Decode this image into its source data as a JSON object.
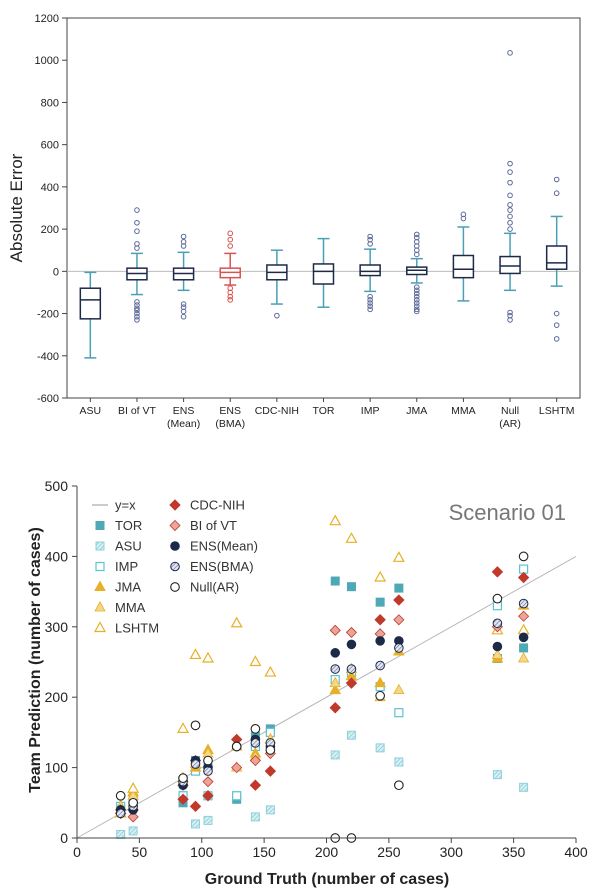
{
  "chart_data": [
    {
      "type": "box",
      "title": "",
      "xlabel": "",
      "ylabel": "Absolute Error",
      "ylim": [
        -600,
        1200
      ],
      "yticks": [
        -600,
        -400,
        -200,
        0,
        200,
        400,
        600,
        800,
        1000,
        1200
      ],
      "reference_line": 0,
      "grid": false,
      "categories": [
        {
          "label": [
            "ASU"
          ],
          "color": "#4a9fb5",
          "q1": -225,
          "median": -135,
          "q3": -80,
          "whisker_low": -410,
          "whisker_high": -5,
          "outliers": []
        },
        {
          "label": [
            "BI of VT"
          ],
          "color": "#4a9fb5",
          "q1": -40,
          "median": -10,
          "q3": 15,
          "whisker_low": -110,
          "whisker_high": 85,
          "outliers": [
            110,
            130,
            190,
            230,
            290,
            -145,
            -160,
            -175,
            -185,
            -200,
            -215,
            -230
          ]
        },
        {
          "label": [
            "ENS",
            "(Mean)"
          ],
          "color": "#4a9fb5",
          "q1": -40,
          "median": -10,
          "q3": 15,
          "whisker_low": -90,
          "whisker_high": 90,
          "outliers": [
            120,
            140,
            165,
            -155,
            -170,
            -190,
            -215
          ]
        },
        {
          "label": [
            "ENS",
            "(BMA)"
          ],
          "color": "#d9534f",
          "q1": -30,
          "median": -5,
          "q3": 15,
          "whisker_low": -65,
          "whisker_high": 85,
          "outliers": [
            120,
            150,
            180,
            -80,
            -100,
            -120,
            -135
          ]
        },
        {
          "label": [
            "CDC-NIH"
          ],
          "color": "#4a9fb5",
          "q1": -40,
          "median": -5,
          "q3": 30,
          "whisker_low": -155,
          "whisker_high": 100,
          "outliers": [
            -210
          ]
        },
        {
          "label": [
            "TOR"
          ],
          "color": "#4a9fb5",
          "q1": -60,
          "median": 0,
          "q3": 35,
          "whisker_low": -170,
          "whisker_high": 155,
          "outliers": []
        },
        {
          "label": [
            "IMP"
          ],
          "color": "#4a9fb5",
          "q1": -20,
          "median": 0,
          "q3": 30,
          "whisker_low": -95,
          "whisker_high": 105,
          "outliers": [
            130,
            150,
            165,
            -120,
            -135,
            -150,
            -165,
            -180
          ]
        },
        {
          "label": [
            "JMA"
          ],
          "color": "#4a9fb5",
          "q1": -15,
          "median": 5,
          "q3": 20,
          "whisker_low": -55,
          "whisker_high": 60,
          "outliers": [
            80,
            100,
            120,
            140,
            160,
            175,
            -75,
            -90,
            -105,
            -120,
            -135,
            -150,
            -165,
            -180,
            -190
          ]
        },
        {
          "label": [
            "MMA"
          ],
          "color": "#4a9fb5",
          "q1": -30,
          "median": 10,
          "q3": 75,
          "whisker_low": -140,
          "whisker_high": 210,
          "outliers": [
            250,
            270
          ]
        },
        {
          "label": [
            "Null",
            "(AR)"
          ],
          "color": "#4a9fb5",
          "q1": -10,
          "median": 25,
          "q3": 70,
          "whisker_low": -90,
          "whisker_high": 180,
          "outliers": [
            200,
            230,
            260,
            290,
            315,
            360,
            420,
            470,
            510,
            1035,
            -195,
            -210,
            -230
          ]
        },
        {
          "label": [
            "LSHTM"
          ],
          "color": "#4a9fb5",
          "q1": 10,
          "median": 40,
          "q3": 120,
          "whisker_low": -70,
          "whisker_high": 260,
          "outliers": [
            370,
            435,
            -200,
            -255,
            -320
          ]
        }
      ]
    },
    {
      "type": "scatter",
      "annotation": "Scenario 01",
      "xlabel": "Ground Truth (number of cases)",
      "ylabel": "Team Prediction (number of cases)",
      "xlim": [
        0,
        400
      ],
      "ylim": [
        0,
        500
      ],
      "xticks": [
        0,
        50,
        100,
        150,
        200,
        250,
        300,
        350,
        400
      ],
      "yticks": [
        0,
        100,
        200,
        300,
        400,
        500
      ],
      "reference_line": "y=x",
      "grid": false,
      "legend_position": "top-left",
      "legend": {
        "col1": [
          {
            "label": "y=x",
            "marker": "line",
            "color": "#aaaaaa"
          },
          {
            "label": "TOR",
            "marker": "square-filled",
            "color": "#4fa8b5"
          },
          {
            "label": "ASU",
            "marker": "square-hatched",
            "color": "#8fd0da"
          },
          {
            "label": "IMP",
            "marker": "square-open",
            "color": "#5ec3cf"
          },
          {
            "label": "JMA",
            "marker": "triangle-filled",
            "color": "#e8b026"
          },
          {
            "label": "MMA",
            "marker": "triangle-light",
            "color": "#f5d789"
          },
          {
            "label": "LSHTM",
            "marker": "triangle-open",
            "color": "#e8b026"
          }
        ],
        "col2": [
          {
            "label": "CDC-NIH",
            "marker": "diamond-filled",
            "color": "#c0392b"
          },
          {
            "label": "BI of VT",
            "marker": "diamond-light",
            "color": "#e8a598"
          },
          {
            "label": "ENS(Mean)",
            "marker": "circle-filled",
            "color": "#1c2a48"
          },
          {
            "label": "ENS(BMA)",
            "marker": "circle-hatched",
            "color": "#8088b0"
          },
          {
            "label": "Null(AR)",
            "marker": "circle-open",
            "color": "#222222"
          }
        ]
      },
      "truth_x": [
        35,
        45,
        85,
        95,
        105,
        128,
        143,
        155,
        207,
        220,
        243,
        258,
        337,
        358
      ],
      "series": [
        {
          "name": "TOR",
          "marker": "square-filled",
          "color": "#4fa8b5",
          "y": [
            40,
            45,
            50,
            110,
            100,
            55,
            145,
            155,
            365,
            357,
            335,
            355,
            255,
            270
          ]
        },
        {
          "name": "ASU",
          "marker": "square-hatched",
          "color": "#8fd0da",
          "y": [
            5,
            10,
            60,
            20,
            25,
            60,
            30,
            40,
            118,
            146,
            128,
            108,
            90,
            72
          ]
        },
        {
          "name": "IMP",
          "marker": "square-open",
          "color": "#5ec3cf",
          "y": [
            45,
            55,
            60,
            95,
            60,
            60,
            130,
            150,
            225,
            235,
            215,
            178,
            330,
            382
          ]
        },
        {
          "name": "JMA",
          "marker": "triangle-filled",
          "color": "#e8b026",
          "y": [
            40,
            65,
            85,
            100,
            125,
            130,
            120,
            140,
            210,
            230,
            220,
            265,
            255,
            330
          ]
        },
        {
          "name": "MMA",
          "marker": "triangle-light",
          "color": "#f5d789",
          "y": [
            45,
            60,
            80,
            105,
            120,
            100,
            115,
            140,
            220,
            240,
            200,
            210,
            260,
            255
          ]
        },
        {
          "name": "LSHTM",
          "marker": "triangle-open",
          "color": "#e8b026",
          "y": [
            35,
            70,
            155,
            260,
            255,
            305,
            250,
            235,
            450,
            425,
            370,
            398,
            295,
            295
          ]
        },
        {
          "name": "CDC-NIH",
          "marker": "diamond-filled",
          "color": "#c0392b",
          "y": [
            35,
            40,
            55,
            45,
            60,
            140,
            75,
            95,
            185,
            220,
            310,
            338,
            378,
            370
          ]
        },
        {
          "name": "BI of VT",
          "marker": "diamond-light",
          "color": "#e8a598",
          "y": [
            40,
            30,
            75,
            110,
            80,
            100,
            110,
            120,
            295,
            292,
            290,
            310,
            300,
            315
          ]
        },
        {
          "name": "ENS(Mean)",
          "marker": "circle-filled",
          "color": "#1c2a48",
          "y": [
            40,
            40,
            75,
            110,
            100,
            130,
            140,
            130,
            263,
            275,
            280,
            280,
            272,
            285
          ]
        },
        {
          "name": "ENS(BMA)",
          "marker": "circle-hatched",
          "color": "#8088b0",
          "y": [
            35,
            45,
            80,
            105,
            95,
            130,
            135,
            135,
            240,
            240,
            245,
            270,
            305,
            333
          ]
        },
        {
          "name": "Null(AR)",
          "marker": "circle-open",
          "color": "#222222",
          "y": [
            60,
            50,
            85,
            160,
            110,
            130,
            155,
            125,
            0,
            0,
            202,
            75,
            340,
            400
          ]
        }
      ]
    }
  ]
}
